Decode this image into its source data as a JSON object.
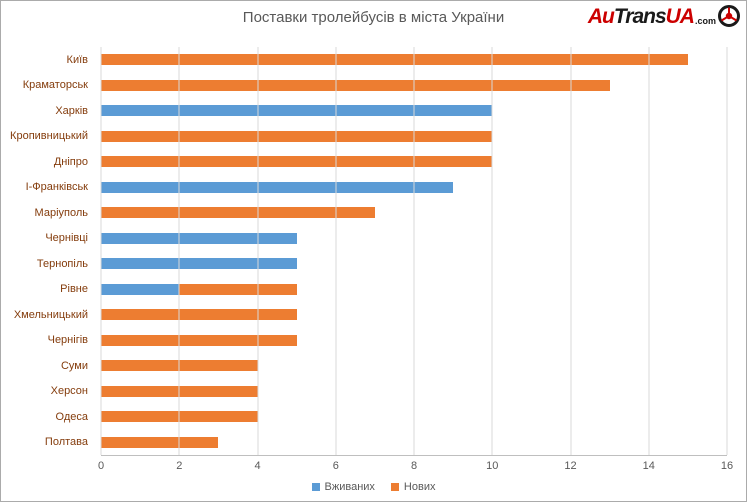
{
  "logo": {
    "part1": "Au",
    "part2": "Trans",
    "part3": "UA",
    "suffix": ".com"
  },
  "chart_data": {
    "type": "bar",
    "orientation": "horizontal",
    "stacked": true,
    "title": "Поставки тролейбусів в міста України",
    "categories": [
      "Київ",
      "Краматорськ",
      "Харків",
      "Кропивницький",
      "Дніпро",
      "І-Франківськ",
      "Маріуполь",
      "Чернівці",
      "Тернопіль",
      "Рівне",
      "Хмельницький",
      "Чернігів",
      "Суми",
      "Херсон",
      "Одеса",
      "Полтава"
    ],
    "series": [
      {
        "name": "Вживаних",
        "color": "#5b9bd5",
        "values": [
          0,
          0,
          10,
          0,
          0,
          9,
          0,
          5,
          5,
          2,
          0,
          0,
          0,
          0,
          0,
          0
        ]
      },
      {
        "name": "Нових",
        "color": "#ed7d31",
        "values": [
          15,
          13,
          0,
          10,
          10,
          0,
          7,
          0,
          0,
          3,
          5,
          5,
          4,
          4,
          4,
          3
        ]
      }
    ],
    "xlim": [
      0,
      16
    ],
    "xticks": [
      0,
      2,
      4,
      6,
      8,
      10,
      12,
      14,
      16
    ],
    "legend_position": "bottom",
    "grid": "vertical",
    "gridline_color": "#d9d9d9",
    "title_color": "#595959",
    "category_label_color": "#843c0c"
  }
}
